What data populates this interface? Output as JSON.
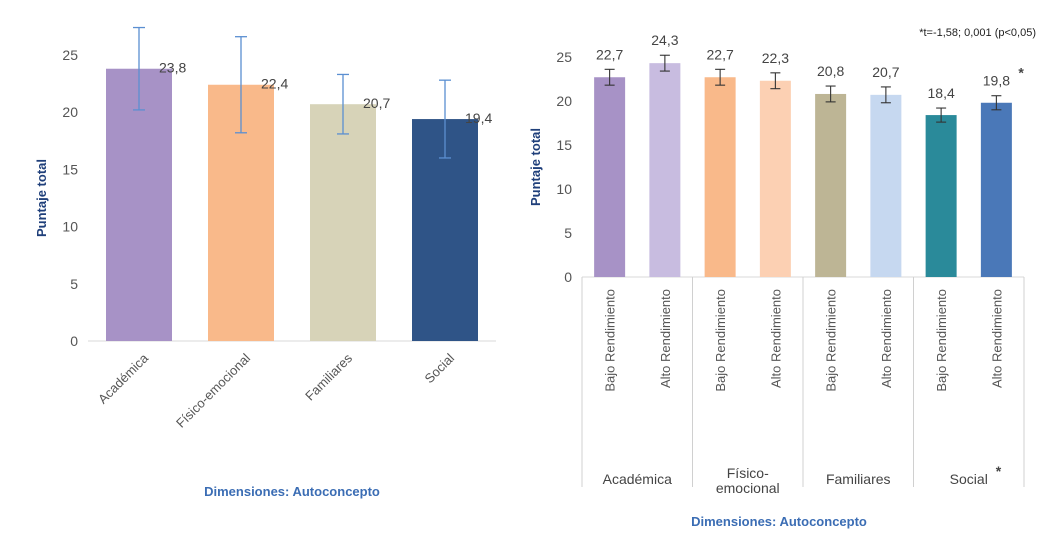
{
  "chart_data": [
    {
      "type": "bar",
      "categories": [
        "Académica",
        "Físico-emocional",
        "Familiares",
        "Social"
      ],
      "values": [
        23.8,
        22.4,
        20.7,
        19.4
      ],
      "data_labels": [
        "23,8",
        "22,4",
        "20,7",
        "19,4"
      ],
      "error": [
        3.6,
        4.2,
        2.6,
        3.4
      ],
      "colors": [
        "#a792c6",
        "#f9b98a",
        "#d7d3b8",
        "#2f5487"
      ],
      "ylabel": "Puntaje total",
      "xlabel": "Dimensiones: Autoconcepto",
      "ylim": [
        0,
        25
      ],
      "yticks": [
        "0",
        "5",
        "10",
        "15",
        "20",
        "25"
      ],
      "grid": false
    },
    {
      "type": "bar",
      "groups": [
        "Académica",
        "Físico-emocional",
        "Familiares",
        "Social"
      ],
      "group_marks": [
        "",
        "",
        "",
        "*"
      ],
      "categories": [
        "Bajo Rendimiento",
        "Alto Rendimiento",
        "Bajo Rendimiento",
        "Alto Rendimiento",
        "Bajo Rendimiento",
        "Alto Rendimiento",
        "Bajo Rendimiento",
        "Alto Rendimiento"
      ],
      "values": [
        22.7,
        24.3,
        22.7,
        22.3,
        20.8,
        20.7,
        18.4,
        19.8
      ],
      "data_labels": [
        "22,7",
        "24,3",
        "22,7",
        "22,3",
        "20,8",
        "20,7",
        "18,4",
        "19,8"
      ],
      "data_label_marks": [
        "",
        "",
        "",
        "",
        "",
        "",
        "",
        "*"
      ],
      "error": [
        0.9,
        0.9,
        0.9,
        0.9,
        0.9,
        0.9,
        0.8,
        0.8
      ],
      "colors": [
        "#a792c6",
        "#c8bce0",
        "#f9b98a",
        "#fcd0b3",
        "#bdb595",
        "#c6d8f0",
        "#2a8a9a",
        "#4a78b8"
      ],
      "ylabel": "Puntaje total",
      "xlabel": "Dimensiones: Autoconcepto",
      "ylim": [
        0,
        25
      ],
      "yticks": [
        "0",
        "5",
        "10",
        "15",
        "20",
        "25"
      ],
      "annotation": "*t=-1,58; 0,001 (p<0,05)",
      "grid": false
    }
  ]
}
